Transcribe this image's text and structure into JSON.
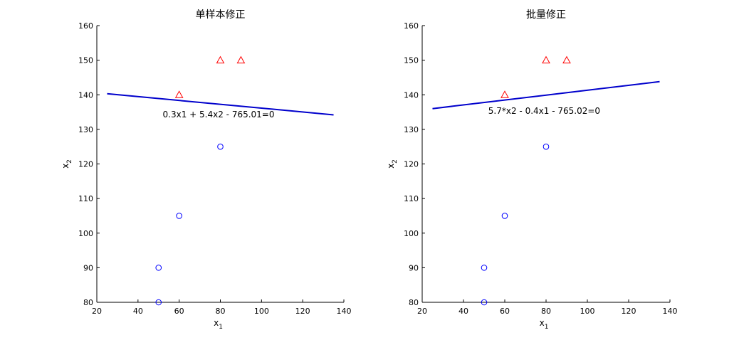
{
  "chart_data": [
    {
      "type": "scatter",
      "title": "单样本修正",
      "xlabel": "x",
      "xlabel_sub": "1",
      "ylabel": "x",
      "ylabel_sub": "2",
      "xlim": [
        20,
        140
      ],
      "ylim": [
        80,
        160
      ],
      "xticks": [
        20,
        40,
        60,
        80,
        100,
        120,
        140
      ],
      "yticks": [
        80,
        90,
        100,
        110,
        120,
        130,
        140,
        150,
        160
      ],
      "series": [
        {
          "marker": "circle",
          "color": "#0000ff",
          "points": [
            [
              50,
              80
            ],
            [
              50,
              90
            ],
            [
              60,
              105
            ],
            [
              80,
              125
            ]
          ]
        },
        {
          "marker": "triangle",
          "color": "#ff0000",
          "points": [
            [
              60,
              140
            ],
            [
              80,
              150
            ],
            [
              90,
              150
            ]
          ]
        }
      ],
      "line": {
        "color": "#0000cc",
        "points": [
          [
            25,
            140.3
          ],
          [
            135,
            134.2
          ]
        ]
      },
      "annotation": {
        "text": "0.3x1 + 5.4x2 - 765.01=0",
        "x": 52,
        "y": 133.5
      }
    },
    {
      "type": "scatter",
      "title": "批量修正",
      "xlabel": "x",
      "xlabel_sub": "1",
      "ylabel": "x",
      "ylabel_sub": "2",
      "xlim": [
        20,
        140
      ],
      "ylim": [
        80,
        160
      ],
      "xticks": [
        20,
        40,
        60,
        80,
        100,
        120,
        140
      ],
      "yticks": [
        80,
        90,
        100,
        110,
        120,
        130,
        140,
        150,
        160
      ],
      "series": [
        {
          "marker": "circle",
          "color": "#0000ff",
          "points": [
            [
              50,
              80
            ],
            [
              50,
              90
            ],
            [
              60,
              105
            ],
            [
              80,
              125
            ]
          ]
        },
        {
          "marker": "triangle",
          "color": "#ff0000",
          "points": [
            [
              60,
              140
            ],
            [
              80,
              150
            ],
            [
              90,
              150
            ]
          ]
        }
      ],
      "line": {
        "color": "#0000cc",
        "points": [
          [
            25,
            136
          ],
          [
            135,
            143.8
          ]
        ]
      },
      "annotation": {
        "text": "5.7*x2 - 0.4x1 - 765.02=0",
        "x": 52,
        "y": 134.5
      }
    }
  ]
}
